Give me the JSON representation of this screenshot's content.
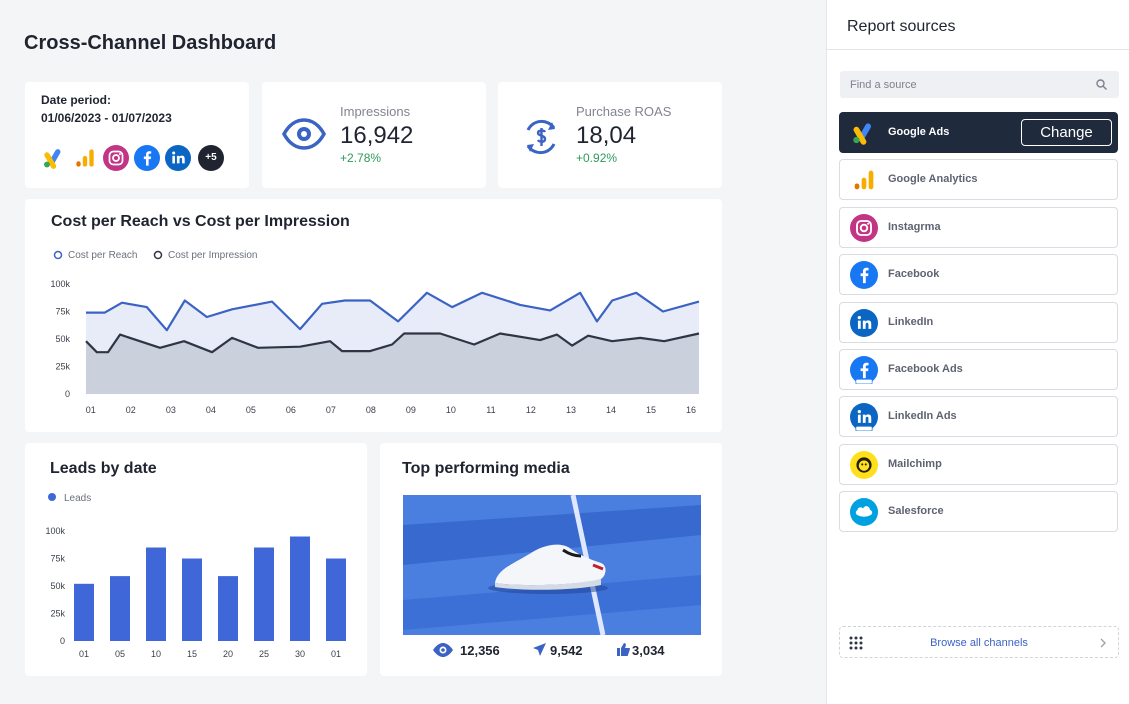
{
  "header": {
    "title": "Cross-Channel Dashboard"
  },
  "date_card": {
    "label": "Date period:",
    "range": "01/06/2023 - 01/07/2023",
    "more": "+5"
  },
  "kpis": [
    {
      "label": "Impressions",
      "value": "16,942",
      "change": "+2.78%"
    },
    {
      "label": "Purchase ROAS",
      "value": "18,04",
      "change": "+0.92%"
    }
  ],
  "line_chart": {
    "type": "line",
    "title": "Cost per Reach vs Cost per Impression",
    "xlim": [
      0.88,
      16.2
    ],
    "xticks": [
      {
        "value": 1,
        "label": "01"
      },
      {
        "value": 2,
        "label": "02"
      },
      {
        "value": 3,
        "label": "03"
      },
      {
        "value": 4,
        "label": "04"
      },
      {
        "value": 5,
        "label": "05"
      },
      {
        "value": 6,
        "label": "06"
      },
      {
        "value": 7,
        "label": "07"
      },
      {
        "value": 8,
        "label": "08"
      },
      {
        "value": 9,
        "label": "09"
      },
      {
        "value": 10,
        "label": "10"
      },
      {
        "value": 11,
        "label": "11"
      },
      {
        "value": 12,
        "label": "12"
      },
      {
        "value": 13,
        "label": "13"
      },
      {
        "value": 14,
        "label": "14"
      },
      {
        "value": 15,
        "label": "15"
      },
      {
        "value": 16,
        "label": "16"
      }
    ],
    "ylim": [
      0,
      100000
    ],
    "yticks": [
      0,
      {
        "value": 25000,
        "label": "25k"
      },
      {
        "value": 50000,
        "label": "50k"
      },
      {
        "value": 75000,
        "label": "75k"
      },
      {
        "value": 100000,
        "label": "100k"
      }
    ],
    "series": [
      {
        "name": "Cost per Reach",
        "color": "#3b63c4",
        "x": [
          0.88,
          1.35,
          1.78,
          2.4,
          2.9,
          3.35,
          3.9,
          4.53,
          5.53,
          6.23,
          6.78,
          7.35,
          7.98,
          8.68,
          9.4,
          10.03,
          10.78,
          11.73,
          12.48,
          13.23,
          13.65,
          14.03,
          14.63,
          15.3,
          16.2
        ],
        "values": [
          74000,
          74000,
          83000,
          79000,
          58000,
          85000,
          70000,
          77000,
          84000,
          59000,
          82000,
          85000,
          85000,
          66000,
          92000,
          79000,
          92000,
          81000,
          76000,
          92000,
          66000,
          85000,
          92000,
          75000,
          84000
        ]
      },
      {
        "name": "Cost per Impression",
        "color": "#2f3542",
        "x": [
          0.88,
          1.15,
          1.43,
          1.73,
          2.73,
          3.33,
          4.03,
          4.53,
          5.18,
          6.23,
          6.98,
          7.28,
          7.98,
          8.53,
          8.83,
          9.73,
          10.58,
          11.23,
          12.23,
          12.65,
          13.03,
          13.43,
          14.03,
          14.73,
          15.33,
          16.2
        ],
        "values": [
          48000,
          38000,
          38000,
          54000,
          42000,
          48000,
          38000,
          51000,
          42000,
          43000,
          48000,
          39000,
          39000,
          45000,
          55000,
          55000,
          45000,
          55000,
          49000,
          54000,
          44000,
          53000,
          48000,
          51000,
          48000,
          55000
        ]
      }
    ]
  },
  "bar_chart": {
    "type": "bar",
    "title": "Leads by date",
    "categories": [
      "01",
      "05",
      "10",
      "15",
      "20",
      "25",
      "30",
      "01"
    ],
    "series": [
      {
        "name": "Leads",
        "color": "#3f67d8",
        "values": [
          52000,
          59000,
          85000,
          75000,
          59000,
          85000,
          95000,
          75000
        ]
      }
    ],
    "ylim": [
      0,
      100000
    ],
    "yticks": [
      0,
      {
        "value": 25000,
        "label": "25k"
      },
      {
        "value": 50000,
        "label": "50k"
      },
      {
        "value": 75000,
        "label": "75k"
      },
      {
        "value": 100000,
        "label": "100k"
      }
    ]
  },
  "media": {
    "title": "Top performing media",
    "views": "12,356",
    "shares": "9,542",
    "likes": "3,034"
  },
  "sources": {
    "title": "Report sources",
    "search_placeholder": "Find a source",
    "change": "Change",
    "items": [
      "Google Ads",
      "Google Analytics",
      "Instagrma",
      "Facebook",
      "LinkedIn",
      "Facebook Ads",
      "LinkedIn Ads",
      "Mailchimp",
      "Salesforce"
    ],
    "browse": "Browse all channels"
  }
}
